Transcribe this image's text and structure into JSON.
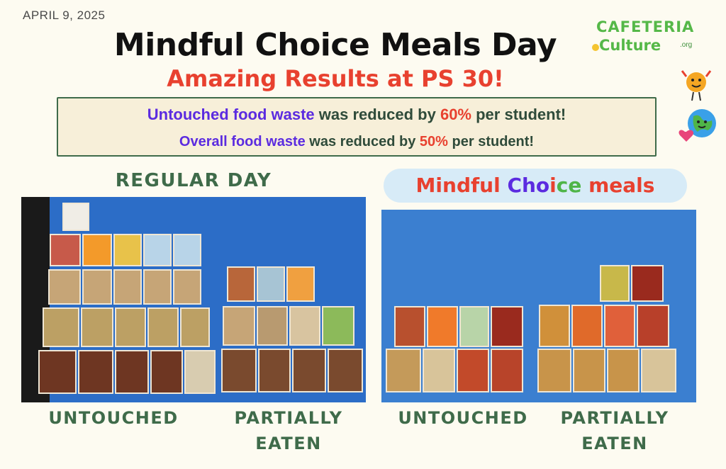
{
  "header": {
    "date": "APRIL 9, 2025",
    "title": "Mindful Choice Meals Day",
    "subtitle": "Amazing Results at PS 30!"
  },
  "results": {
    "line1": {
      "highlight": "Untouched food waste",
      "middle": " was reduced by ",
      "percent": "60%",
      "end": " per student!"
    },
    "line2": {
      "highlight": "Overall food waste",
      "middle": " was reduced by ",
      "percent": "50%",
      "end": " per student!"
    }
  },
  "logo": {
    "line1": "CAFETERIA",
    "line2": "Culture",
    "suffix": ".org"
  },
  "sections": {
    "regular_day": "REGULAR DAY",
    "mindful_banner": {
      "part1": "Mindful ",
      "part2": "Cho",
      "part3": "i",
      "part4": "ce",
      "part5": " meals"
    }
  },
  "labels": {
    "left_untouched": "UNTOUCHED",
    "left_partial": "PARTIALLY EATEN",
    "right_untouched": "UNTOUCHED",
    "right_partial": "PARTIALLY EATEN"
  },
  "colors": {
    "title_red": "#e8412f",
    "highlight_purple": "#5b2be0",
    "label_green": "#3f6b4a",
    "tarp_blue": "#2c6dc7",
    "logo_green": "#55b848"
  },
  "icons": [
    "smiling-fruit-icon",
    "earth-with-heart-icon",
    "apple-icon"
  ]
}
